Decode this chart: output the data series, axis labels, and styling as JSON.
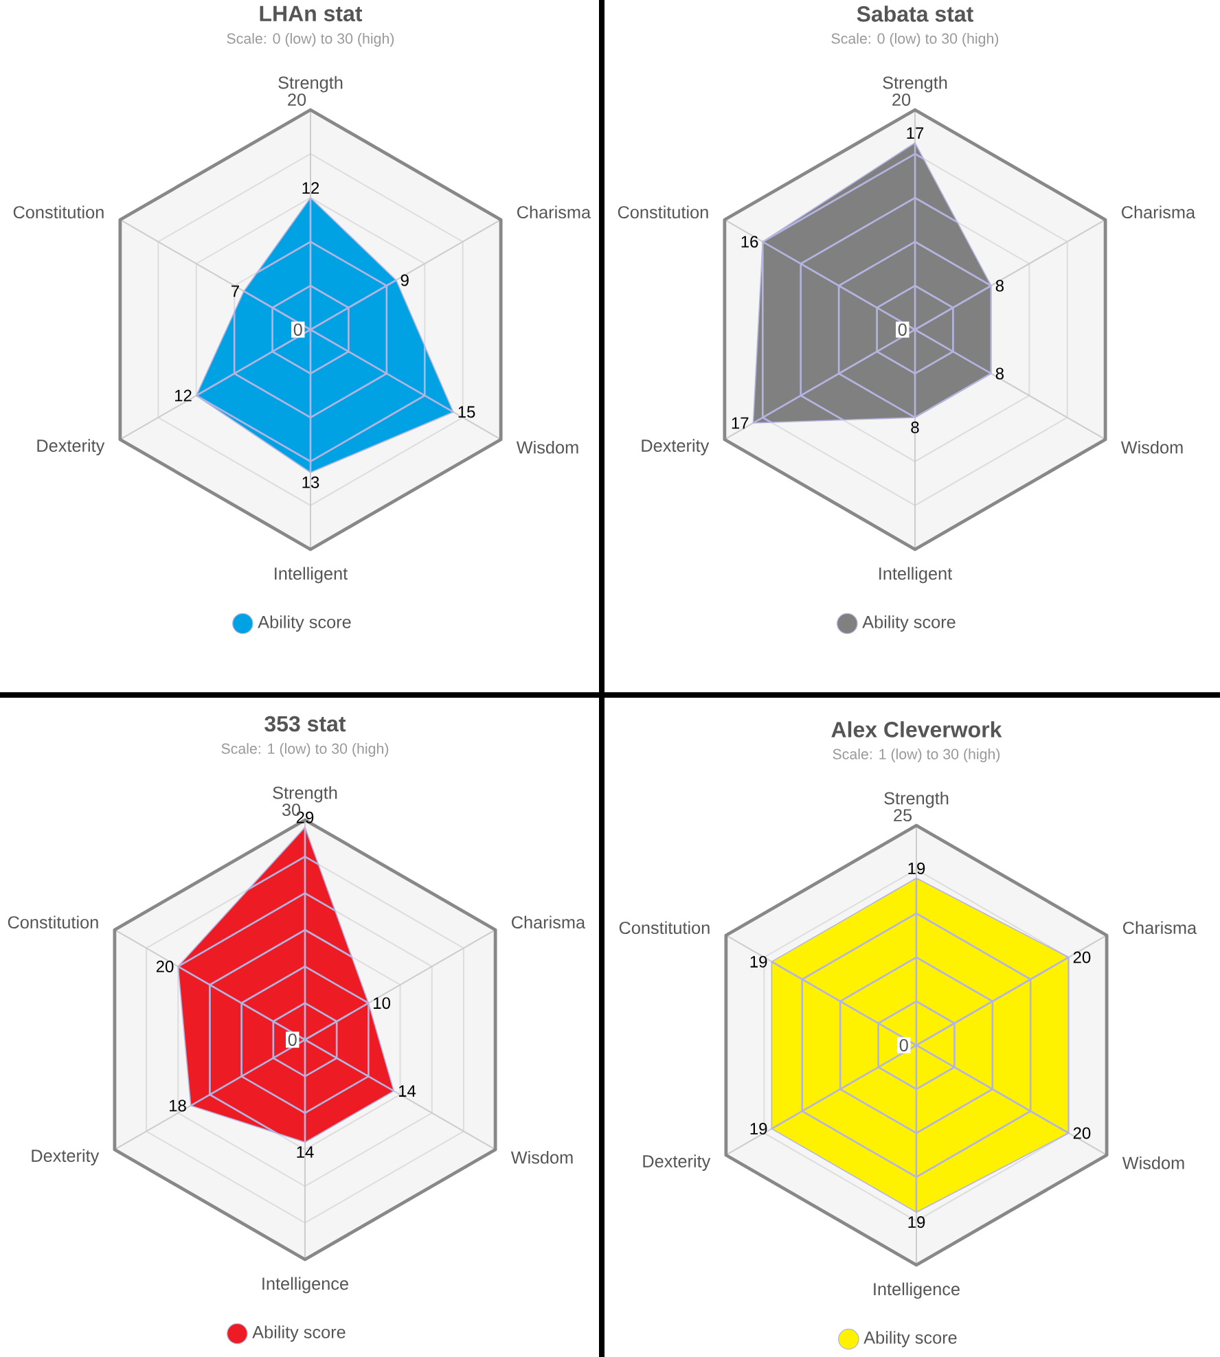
{
  "chart_data": [
    {
      "type": "radar",
      "title": "LHAn stat",
      "subtitle": "Scale: 0 (low) to 30 (high)",
      "categories": [
        "Strength",
        "Charisma",
        "Wisdom",
        "Intelligent",
        "Dexterity",
        "Constitution"
      ],
      "series": [
        {
          "name": "Ability score",
          "color": "#00a2e4",
          "values": [
            12,
            9,
            15,
            13,
            12,
            7
          ]
        }
      ],
      "ylim": [
        0,
        20
      ],
      "yticks": [
        0,
        20
      ],
      "grid": true,
      "legend": "bottom",
      "data_labels": true
    },
    {
      "type": "radar",
      "title": "Sabata stat",
      "subtitle": "Scale: 0 (low) to 30 (high)",
      "categories": [
        "Strength",
        "Charisma",
        "Wisdom",
        "Intelligent",
        "Dexterity",
        "Constitution"
      ],
      "series": [
        {
          "name": "Ability score",
          "color": "#808080",
          "values": [
            17,
            8,
            8,
            8,
            17,
            16
          ]
        }
      ],
      "ylim": [
        0,
        20
      ],
      "yticks": [
        0,
        20
      ],
      "grid": true,
      "legend": "bottom",
      "data_labels": true
    },
    {
      "type": "radar",
      "title": "353 stat",
      "subtitle": "Scale: 1 (low) to 30 (high)",
      "categories": [
        "Strength",
        "Charisma",
        "Wisdom",
        "Intelligence",
        "Dexterity",
        "Constitution"
      ],
      "series": [
        {
          "name": "Ability score",
          "color": "#ed1c24",
          "values": [
            29,
            10,
            14,
            14,
            18,
            20
          ]
        }
      ],
      "ylim": [
        0,
        30
      ],
      "yticks": [
        0,
        30
      ],
      "grid": true,
      "legend": "bottom",
      "data_labels": true
    },
    {
      "type": "radar",
      "title": "Alex Cleverwork",
      "subtitle": "Scale: 1 (low) to 30 (high)",
      "categories": [
        "Strength",
        "Charisma",
        "Wisdom",
        "Intelligence",
        "Dexterity",
        "Constitution"
      ],
      "series": [
        {
          "name": "Ability score",
          "color": "#fff200",
          "values": [
            19,
            20,
            20,
            19,
            19,
            19
          ]
        }
      ],
      "ylim": [
        0,
        25
      ],
      "yticks": [
        0,
        25
      ],
      "grid": true,
      "legend": "bottom",
      "data_labels": true
    }
  ]
}
